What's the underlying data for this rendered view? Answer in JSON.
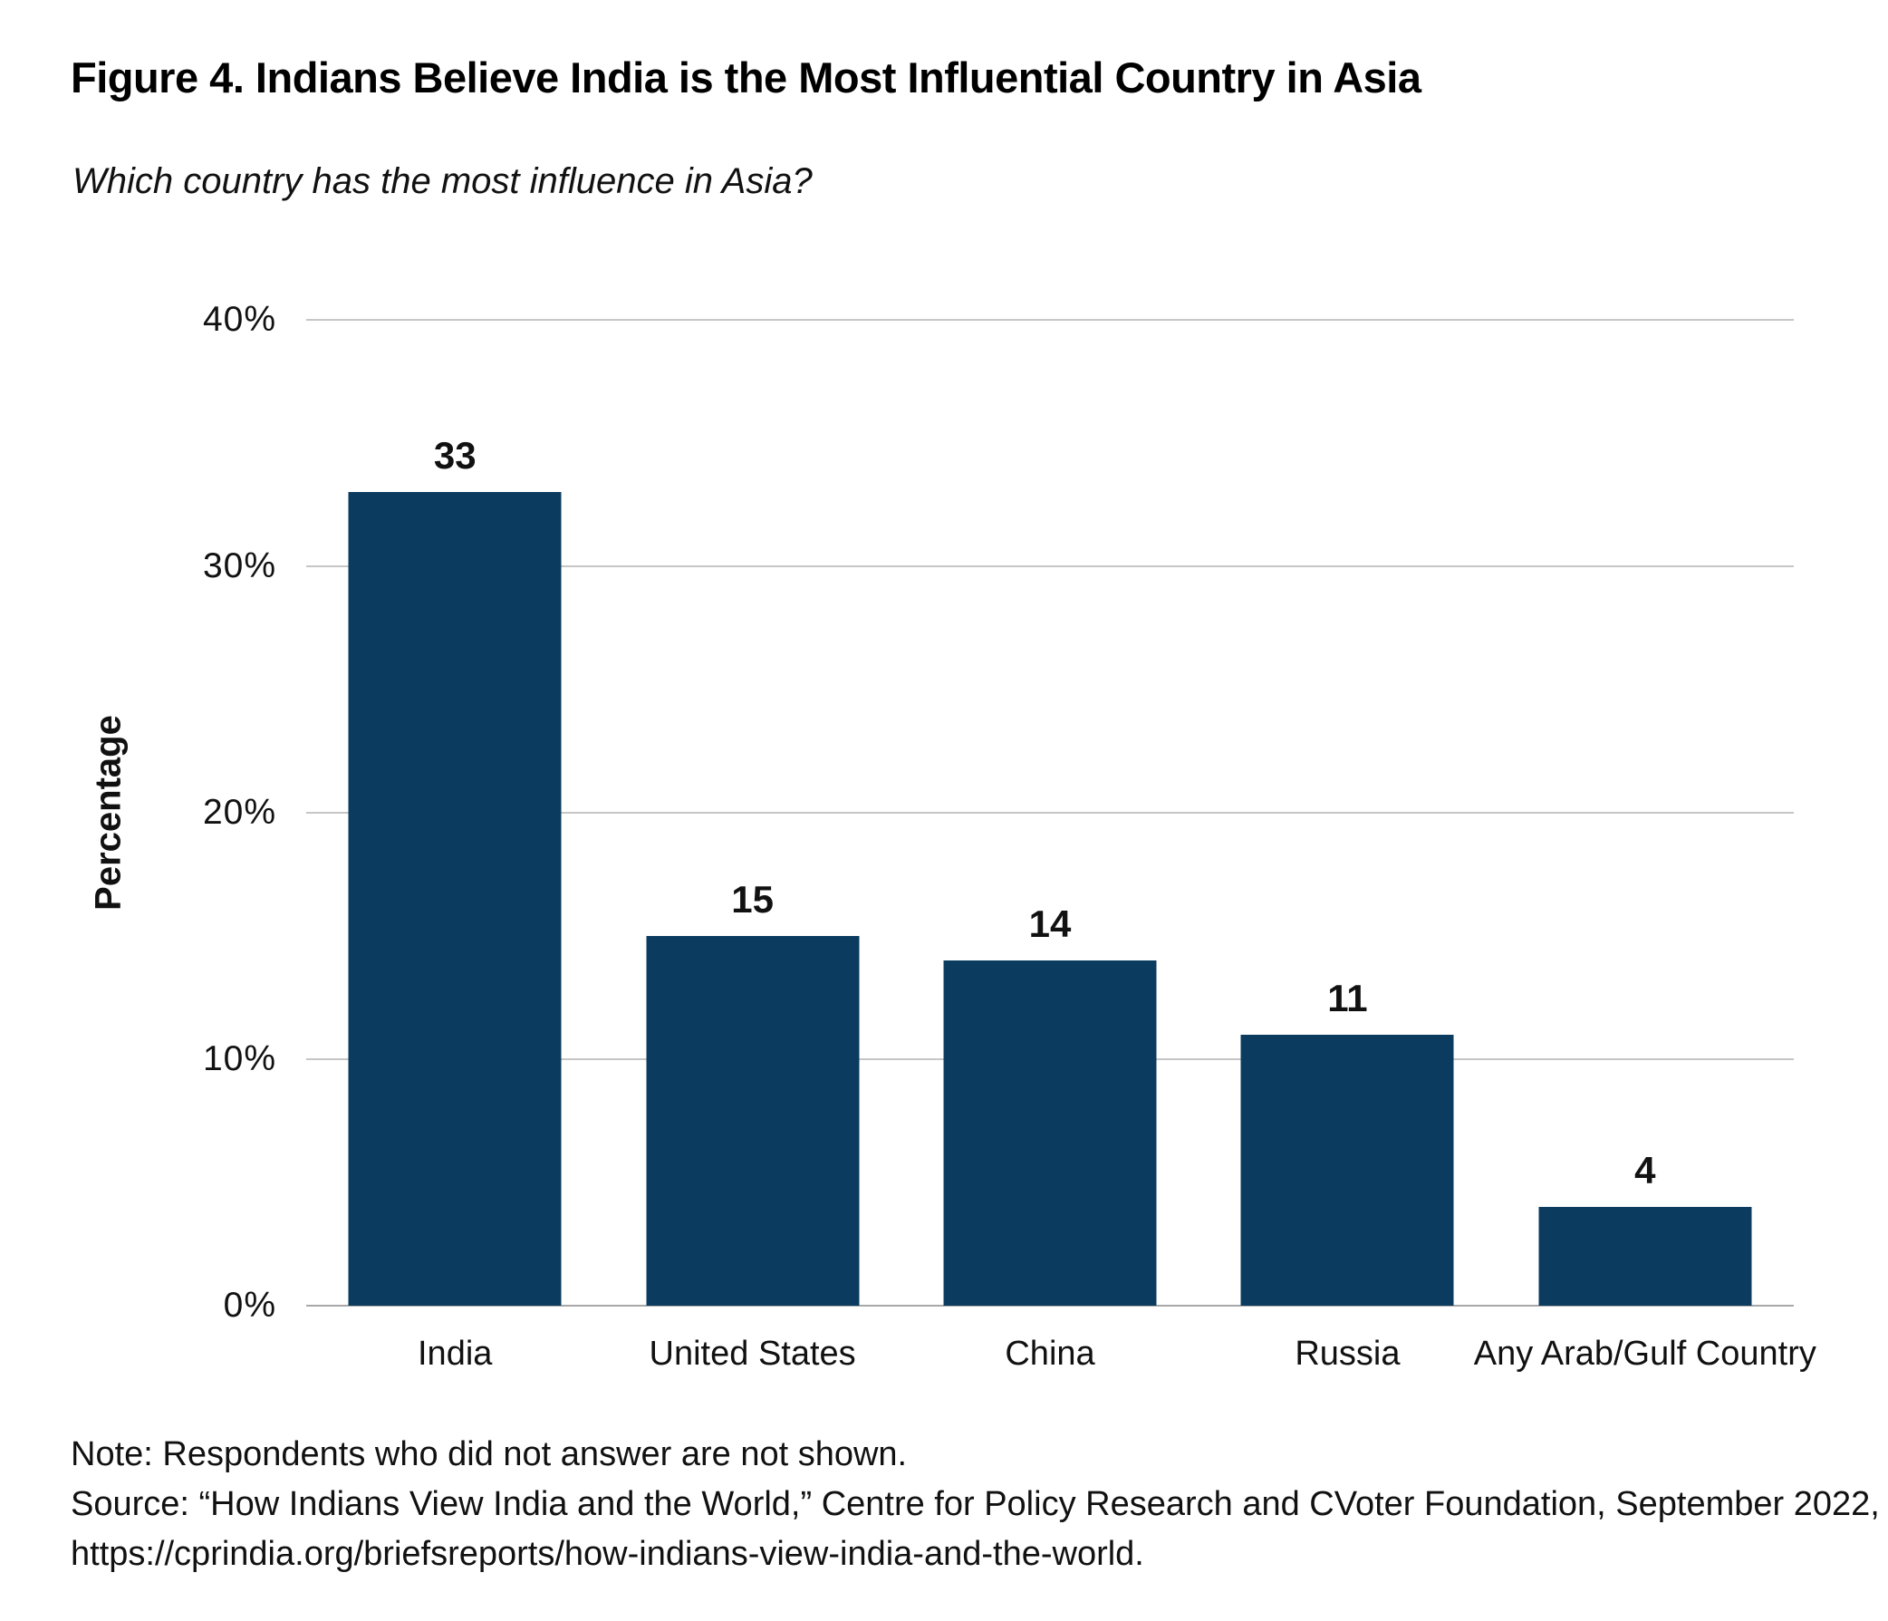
{
  "chart_data": {
    "type": "bar",
    "title": "Figure 4. Indians Believe India is the Most Influential Country in Asia",
    "subtitle": "Which country has the most influence in Asia?",
    "categories": [
      "India",
      "United States",
      "China",
      "Russia",
      "Any Arab/Gulf Country"
    ],
    "values": [
      33,
      15,
      14,
      11,
      4
    ],
    "xlabel": "",
    "ylabel": "Percentage",
    "ylim": [
      0,
      40
    ],
    "yticks": [
      0,
      10,
      20,
      30,
      40
    ],
    "ytick_suffix": "%",
    "grid": true,
    "legend_position": "none",
    "bar_color": "#0b3c5f",
    "gridline_color": "#c6c6c6",
    "baseline_color": "#a8a8a8"
  },
  "notes": {
    "lines": [
      "Note: Respondents who did not answer are not shown.",
      "Source: “How Indians View India and the World,” Centre for Policy Research and CVoter Foundation, September 2022,",
      "https://cprindia.org/briefsreports/how-indians-view-india-and-the-world."
    ]
  }
}
